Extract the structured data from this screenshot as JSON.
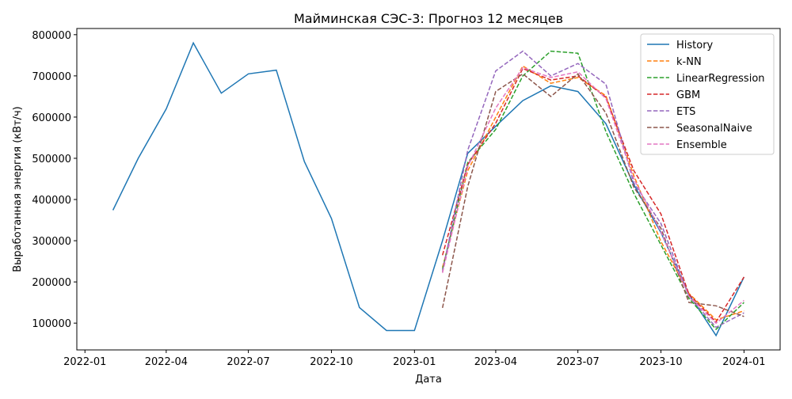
{
  "chart_data": {
    "type": "line",
    "title": "Майминская СЭС-3: Прогноз 12 месяцев",
    "xlabel": "Дата",
    "ylabel": "Выработанная энергия (кВт/ч)",
    "xlim": [
      "2021-12-23",
      "2024-02-10"
    ],
    "ylim": [
      35000,
      815000
    ],
    "x_ticks": [
      "2022-01",
      "2022-04",
      "2022-07",
      "2022-10",
      "2023-01",
      "2023-04",
      "2023-07",
      "2023-10",
      "2024-01"
    ],
    "y_ticks": [
      100000,
      200000,
      300000,
      400000,
      500000,
      600000,
      700000,
      800000
    ],
    "grid": false,
    "legend_position": "top-right",
    "series": [
      {
        "name": "History",
        "style": "solid",
        "color": "#1f77b4",
        "x": [
          "2022-02-01",
          "2022-03-01",
          "2022-04-01",
          "2022-05-01",
          "2022-06-01",
          "2022-07-01",
          "2022-08-01",
          "2022-09-01",
          "2022-10-01",
          "2022-11-01",
          "2022-12-01",
          "2023-01-01",
          "2023-02-01",
          "2023-03-01",
          "2023-04-01",
          "2023-05-01",
          "2023-06-01",
          "2023-07-01",
          "2023-08-01",
          "2023-09-01",
          "2023-10-01",
          "2023-11-01",
          "2023-12-01",
          "2024-01-01"
        ],
        "y": [
          374000,
          500000,
          620000,
          780000,
          658000,
          705000,
          714000,
          492000,
          354000,
          138000,
          82000,
          82000,
          300000,
          512000,
          578000,
          640000,
          676000,
          662000,
          584000,
          436000,
          320000,
          170000,
          70000,
          212000
        ]
      },
      {
        "name": "k-NN",
        "style": "dashed",
        "color": "#ff7f0e",
        "x": [
          "2023-02-01",
          "2023-03-01",
          "2023-04-01",
          "2023-05-01",
          "2023-06-01",
          "2023-07-01",
          "2023-08-01",
          "2023-09-01",
          "2023-10-01",
          "2023-11-01",
          "2023-12-01",
          "2024-01-01"
        ],
        "y": [
          235000,
          470000,
          600000,
          724000,
          682000,
          696000,
          652000,
          458000,
          298000,
          172000,
          108000,
          130000
        ]
      },
      {
        "name": "LinearRegression",
        "style": "dashed",
        "color": "#2ca02c",
        "x": [
          "2023-02-01",
          "2023-03-01",
          "2023-04-01",
          "2023-05-01",
          "2023-06-01",
          "2023-07-01",
          "2023-08-01",
          "2023-09-01",
          "2023-10-01",
          "2023-11-01",
          "2023-12-01",
          "2024-01-01"
        ],
        "y": [
          230000,
          490000,
          570000,
          700000,
          760000,
          755000,
          565000,
          415000,
          290000,
          160000,
          85000,
          150000
        ]
      },
      {
        "name": "GBM",
        "style": "dashed",
        "color": "#d62728",
        "x": [
          "2023-02-01",
          "2023-03-01",
          "2023-04-01",
          "2023-05-01",
          "2023-06-01",
          "2023-07-01",
          "2023-08-01",
          "2023-09-01",
          "2023-10-01",
          "2023-11-01",
          "2023-12-01",
          "2024-01-01"
        ],
        "y": [
          265000,
          485000,
          585000,
          718000,
          690000,
          700000,
          648000,
          470000,
          365000,
          170000,
          103000,
          212000
        ]
      },
      {
        "name": "ETS",
        "style": "dashed",
        "color": "#9467bd",
        "x": [
          "2023-02-01",
          "2023-03-01",
          "2023-04-01",
          "2023-05-01",
          "2023-06-01",
          "2023-07-01",
          "2023-08-01",
          "2023-09-01",
          "2023-10-01",
          "2023-11-01",
          "2023-12-01",
          "2024-01-01"
        ],
        "y": [
          225000,
          520000,
          712000,
          760000,
          700000,
          730000,
          680000,
          440000,
          342000,
          165000,
          90000,
          125000
        ]
      },
      {
        "name": "SeasonalNaive",
        "style": "dashed",
        "color": "#8c564b",
        "x": [
          "2023-02-01",
          "2023-03-01",
          "2023-04-01",
          "2023-05-01",
          "2023-06-01",
          "2023-07-01",
          "2023-08-01",
          "2023-09-01",
          "2023-10-01",
          "2023-11-01",
          "2023-12-01",
          "2024-01-01"
        ],
        "y": [
          137000,
          432000,
          662000,
          705000,
          650000,
          705000,
          610000,
          430000,
          330000,
          150000,
          142000,
          116000
        ]
      },
      {
        "name": "Ensemble",
        "style": "dashed",
        "color": "#e377c2",
        "x": [
          "2023-02-01",
          "2023-03-01",
          "2023-04-01",
          "2023-05-01",
          "2023-06-01",
          "2023-07-01",
          "2023-08-01",
          "2023-09-01",
          "2023-10-01",
          "2023-11-01",
          "2023-12-01",
          "2024-01-01"
        ],
        "y": [
          222000,
          480000,
          622000,
          720000,
          696000,
          710000,
          645000,
          450000,
          322000,
          165000,
          100000,
          155000
        ]
      }
    ]
  }
}
